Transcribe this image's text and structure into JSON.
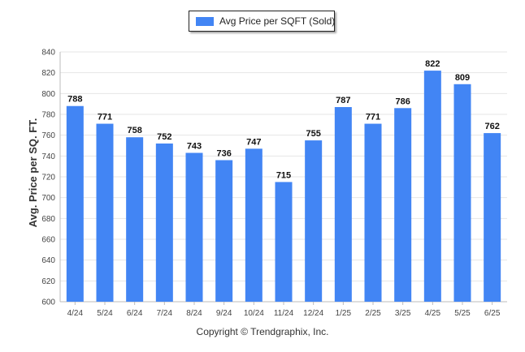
{
  "legend": {
    "label": "Avg Price per SQFT (Sold)",
    "color": "#4285f4"
  },
  "footer": "Copyright © Trendgraphix, Inc.",
  "chart_data": {
    "type": "bar",
    "categories": [
      "4/24",
      "5/24",
      "6/24",
      "7/24",
      "8/24",
      "9/24",
      "10/24",
      "11/24",
      "12/24",
      "1/25",
      "2/25",
      "3/25",
      "4/25",
      "5/25",
      "6/25"
    ],
    "series": [
      {
        "name": "Avg Price per SQFT (Sold)",
        "values": [
          788,
          771,
          758,
          752,
          743,
          736,
          747,
          715,
          755,
          787,
          771,
          786,
          822,
          809,
          762
        ]
      }
    ],
    "ylabel": "Avg. Price per SQ. FT.",
    "xlabel": "",
    "ylim": [
      600,
      840
    ],
    "yticks": [
      600,
      620,
      640,
      660,
      680,
      700,
      720,
      740,
      760,
      780,
      800,
      820,
      840
    ],
    "grid": true,
    "legend_position": "top-center",
    "bar_color": "#4285f4"
  }
}
